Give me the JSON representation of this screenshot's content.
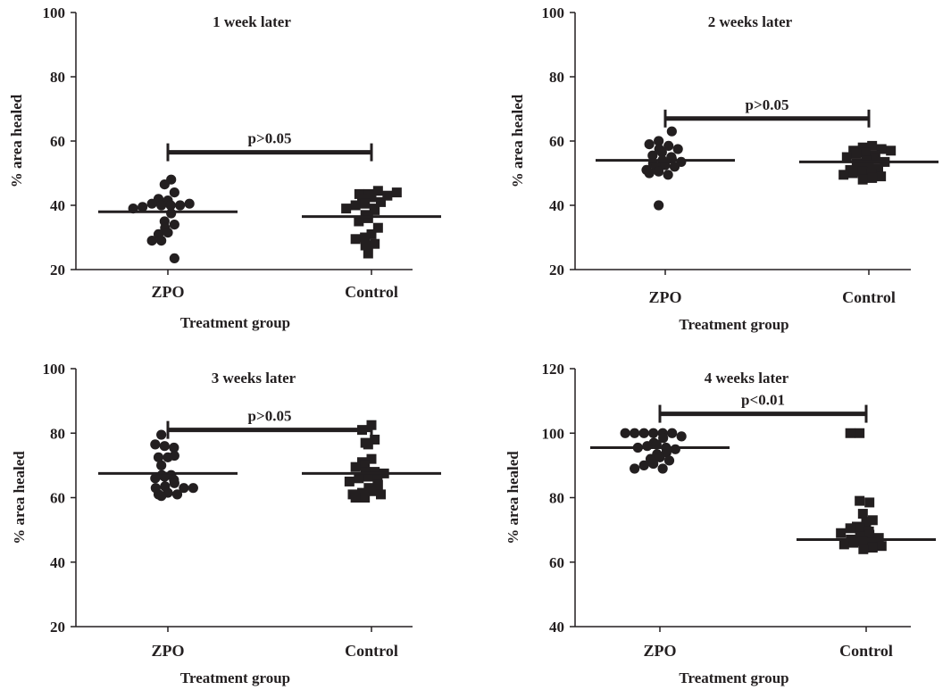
{
  "chart_data": [
    {
      "type": "scatter",
      "title": "1 week later",
      "xlabel": "Treatment group",
      "ylabel": "% area healed",
      "ylim": [
        20,
        100
      ],
      "yticks": [
        20,
        40,
        60,
        80,
        100
      ],
      "categories": [
        "ZPO",
        "Control"
      ],
      "grid": false,
      "series": [
        {
          "name": "ZPO",
          "marker": "circle",
          "mean": 38,
          "values": [
            48,
            44,
            46.5,
            41.5,
            42,
            40,
            40.5,
            40,
            39.5,
            40,
            39,
            40.5,
            37.5,
            35,
            34,
            33,
            31.5,
            31,
            29,
            29,
            23.5
          ]
        },
        {
          "name": "Control",
          "marker": "square",
          "mean": 36.5,
          "values": [
            44.5,
            43.5,
            43,
            43.5,
            44,
            42.5,
            42,
            41,
            40.5,
            40,
            39,
            39,
            38.5,
            37,
            36,
            35,
            33,
            31,
            30,
            29.5,
            28,
            27.5,
            25
          ]
        }
      ],
      "significance": {
        "label": "p>0.05",
        "y": 56.5
      }
    },
    {
      "type": "scatter",
      "title": "2 weeks later",
      "xlabel": "Treatment group",
      "ylabel": "% area healed",
      "ylim": [
        20,
        100
      ],
      "yticks": [
        20,
        40,
        60,
        80,
        100
      ],
      "categories": [
        "ZPO",
        "Control"
      ],
      "grid": false,
      "series": [
        {
          "name": "ZPO",
          "marker": "circle",
          "mean": 54,
          "values": [
            63,
            60,
            59,
            58.5,
            57.5,
            57.5,
            56.5,
            55.5,
            55,
            54.5,
            54,
            53.5,
            53,
            52.5,
            52,
            52,
            51,
            50.5,
            50,
            49.5,
            40
          ]
        },
        {
          "name": "Control",
          "marker": "square",
          "mean": 53.5,
          "values": [
            58.5,
            58,
            57.5,
            57,
            57,
            56.5,
            56,
            55.5,
            55,
            54.5,
            54,
            53.5,
            53,
            52.5,
            52,
            51.5,
            51,
            50.5,
            50,
            50,
            49.5,
            49,
            48.5,
            48
          ]
        }
      ],
      "significance": {
        "label": "p>0.05",
        "y": 67
      }
    },
    {
      "type": "scatter",
      "title": "3 weeks later",
      "xlabel": "Treatment group",
      "ylabel": "% area healed",
      "ylim": [
        20,
        100
      ],
      "yticks": [
        20,
        40,
        60,
        80,
        100
      ],
      "categories": [
        "ZPO",
        "Control"
      ],
      "grid": false,
      "series": [
        {
          "name": "ZPO",
          "marker": "circle",
          "mean": 67.5,
          "values": [
            79.5,
            76,
            76.5,
            75.5,
            73,
            72.5,
            72.5,
            70,
            67,
            67,
            66.5,
            66,
            65.5,
            64.5,
            63.5,
            63,
            63,
            63,
            61.5,
            61,
            61,
            60.5
          ]
        },
        {
          "name": "Control",
          "marker": "square",
          "mean": 67.5,
          "values": [
            82.5,
            81,
            78,
            77,
            76.5,
            72,
            71,
            70,
            69.5,
            68,
            68,
            67.5,
            66.5,
            66,
            65.5,
            65,
            64,
            63,
            62,
            61.5,
            61,
            61,
            60,
            60
          ]
        }
      ],
      "significance": {
        "label": "p>0.05",
        "y": 81
      }
    },
    {
      "type": "scatter",
      "title": "4 weeks later",
      "xlabel": "Treatment group",
      "ylabel": "% area healed",
      "ylim": [
        40,
        120
      ],
      "yticks": [
        40,
        60,
        80,
        100,
        120
      ],
      "categories": [
        "ZPO",
        "Control"
      ],
      "grid": false,
      "series": [
        {
          "name": "ZPO",
          "marker": "circle",
          "mean": 95.5,
          "values": [
            100,
            100,
            100,
            100,
            100,
            100,
            99,
            98.5,
            97,
            96.5,
            96,
            95.5,
            95.5,
            95,
            94,
            93.5,
            92.5,
            92,
            91.5,
            90.5,
            90,
            89,
            89
          ]
        },
        {
          "name": "Control",
          "marker": "square",
          "mean": 67,
          "values": [
            100,
            100,
            79,
            78.5,
            75,
            73,
            72.5,
            71,
            70.5,
            70.5,
            69.5,
            69,
            68.5,
            68,
            67.5,
            67,
            66.5,
            66,
            66,
            65.5,
            65,
            64.5,
            64
          ]
        }
      ],
      "significance": {
        "label": "p<0.01",
        "y": 106
      }
    }
  ]
}
